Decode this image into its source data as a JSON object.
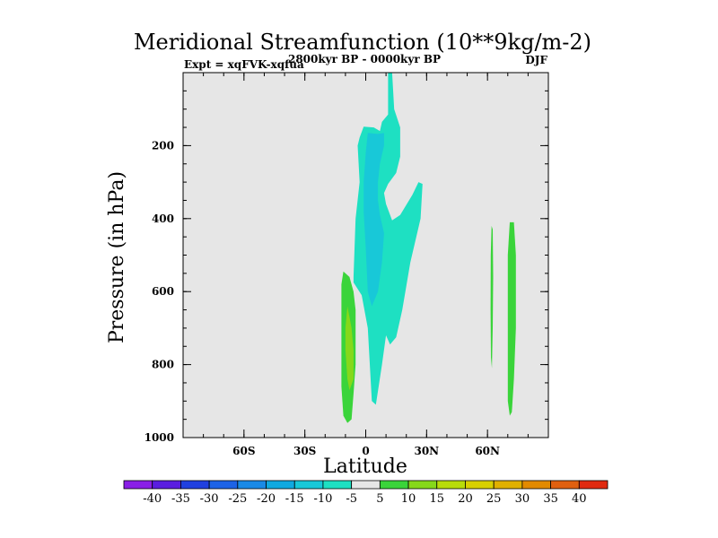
{
  "chart_data": {
    "type": "contour",
    "title": "Meridional Streamfunction (10**9kg/m-2)",
    "left_string": "Expt = xqFVK-xqfua",
    "center_string": "2800kyr BP - 0000kyr BP",
    "right_string": "DJF",
    "xlabel": "Latitude",
    "ylabel": "Pressure (in hPa)",
    "xlim": [
      -90,
      90
    ],
    "ylim": [
      0,
      1000
    ],
    "y_reversed": true,
    "x_ticks": [
      {
        "value": -60,
        "label": "60S"
      },
      {
        "value": -30,
        "label": "30S"
      },
      {
        "value": 0,
        "label": "0"
      },
      {
        "value": 30,
        "label": "30N"
      },
      {
        "value": 60,
        "label": "60N"
      }
    ],
    "y_ticks": [
      {
        "value": 200,
        "label": "200"
      },
      {
        "value": 400,
        "label": "400"
      },
      {
        "value": 600,
        "label": "600"
      },
      {
        "value": 800,
        "label": "800"
      },
      {
        "value": 1000,
        "label": "1000"
      }
    ],
    "x_minor_step": 10,
    "y_minor_step": 50,
    "background_color": "#e6e6e6",
    "levels": [
      -40,
      -35,
      -30,
      -25,
      -20,
      -15,
      -10,
      -5,
      5,
      10,
      15,
      20,
      25,
      30,
      35,
      40
    ],
    "level_labels": [
      "-40",
      "-35",
      "-30",
      "-25",
      "-20",
      "-15",
      "-10",
      "-5",
      "5",
      "10",
      "15",
      "20",
      "25",
      "30",
      "35",
      "40"
    ],
    "colors": [
      "#8a1fe6",
      "#5a1ee0",
      "#2040e0",
      "#1d63e6",
      "#1a8ae6",
      "#10a9e0",
      "#18c8d8",
      "#1ee0c2",
      "#e6e6e6",
      "#3ad43a",
      "#86d81a",
      "#b8dc0a",
      "#d8d000",
      "#e0b000",
      "#e28a00",
      "#e06010",
      "#e02a10"
    ],
    "regions": [
      {
        "name": "tropical-cell-outer",
        "level": "-5",
        "color": "#1ee0c2",
        "points": [
          [
            -3,
            178
          ],
          [
            -1,
            148
          ],
          [
            4,
            150
          ],
          [
            7,
            160
          ],
          [
            8,
            135
          ],
          [
            11,
            115
          ],
          [
            11,
            0
          ],
          [
            13,
            0
          ],
          [
            14,
            100
          ],
          [
            17,
            150
          ],
          [
            17,
            230
          ],
          [
            15,
            275
          ],
          [
            11,
            305
          ],
          [
            9,
            330
          ],
          [
            10,
            360
          ],
          [
            13,
            405
          ],
          [
            17,
            390
          ],
          [
            23,
            335
          ],
          [
            26,
            300
          ],
          [
            28,
            305
          ],
          [
            27,
            400
          ],
          [
            22,
            520
          ],
          [
            18,
            650
          ],
          [
            15,
            725
          ],
          [
            12,
            745
          ],
          [
            10,
            720
          ],
          [
            8,
            800
          ],
          [
            5,
            910
          ],
          [
            3,
            900
          ],
          [
            1,
            700
          ],
          [
            -2,
            610
          ],
          [
            -6,
            575
          ],
          [
            -6,
            560
          ],
          [
            -5,
            400
          ],
          [
            -3,
            300
          ],
          [
            -4,
            200
          ]
        ]
      },
      {
        "name": "tropical-cell-inner",
        "level": "-10",
        "color": "#18c8d8",
        "points": [
          [
            1,
            165
          ],
          [
            6,
            168
          ],
          [
            9,
            165
          ],
          [
            9,
            200
          ],
          [
            7,
            250
          ],
          [
            6,
            300
          ],
          [
            6,
            350
          ],
          [
            7,
            390
          ],
          [
            9,
            440
          ],
          [
            8,
            520
          ],
          [
            6,
            600
          ],
          [
            3,
            640
          ],
          [
            1,
            600
          ],
          [
            0,
            480
          ],
          [
            -1,
            380
          ],
          [
            -1,
            300
          ],
          [
            0,
            220
          ]
        ]
      },
      {
        "name": "sh-positive-cell-outer",
        "level": "5",
        "color": "#3ad43a",
        "points": [
          [
            -11,
            545
          ],
          [
            -8,
            560
          ],
          [
            -6,
            600
          ],
          [
            -5,
            650
          ],
          [
            -5,
            700
          ],
          [
            -5,
            800
          ],
          [
            -6,
            880
          ],
          [
            -7,
            950
          ],
          [
            -9,
            960
          ],
          [
            -11,
            940
          ],
          [
            -12,
            860
          ],
          [
            -12,
            760
          ],
          [
            -12,
            650
          ],
          [
            -12,
            580
          ]
        ]
      },
      {
        "name": "sh-positive-cell-inner",
        "level": "10",
        "color": "#86d81a",
        "points": [
          [
            -9,
            640
          ],
          [
            -7,
            700
          ],
          [
            -6,
            760
          ],
          [
            -6,
            840
          ],
          [
            -8,
            870
          ],
          [
            -9,
            840
          ],
          [
            -10,
            760
          ],
          [
            -10,
            700
          ]
        ]
      },
      {
        "name": "nh-positive-cell-a",
        "level": "5",
        "color": "#3ad43a",
        "points": [
          [
            62,
            420
          ],
          [
            62.6,
            430
          ],
          [
            62.8,
            560
          ],
          [
            62.6,
            700
          ],
          [
            62.2,
            810
          ],
          [
            61.7,
            780
          ],
          [
            61.5,
            650
          ],
          [
            61.6,
            500
          ]
        ]
      },
      {
        "name": "nh-positive-cell-b",
        "level": "5",
        "color": "#3ad43a",
        "points": [
          [
            71,
            410
          ],
          [
            73,
            410
          ],
          [
            74,
            500
          ],
          [
            74,
            700
          ],
          [
            73,
            840
          ],
          [
            72,
            930
          ],
          [
            71,
            940
          ],
          [
            70,
            900
          ],
          [
            70,
            700
          ],
          [
            70,
            500
          ]
        ]
      }
    ]
  }
}
